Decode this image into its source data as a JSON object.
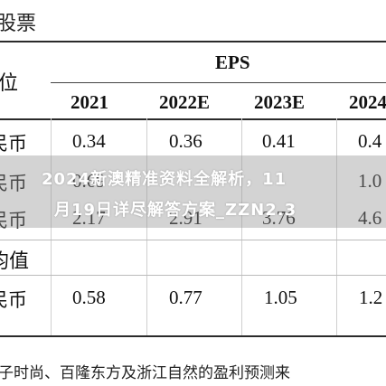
{
  "table": {
    "top_left_fragment": "股票",
    "unit_fragment": "位",
    "eps_header": "EPS",
    "years": [
      "2021",
      "2022E",
      "2023E",
      "2024"
    ],
    "rows": [
      {
        "label": "民币",
        "values": [
          "0.34",
          "0.36",
          "0.41",
          "0.4"
        ]
      },
      {
        "label": "民币",
        "values": [
          "0.69",
          "",
          "",
          "1.0"
        ]
      },
      {
        "label": "民币",
        "values": [
          "2.17",
          "2.91",
          "3.76",
          "4.6"
        ]
      }
    ],
    "section_label": "均值",
    "avg_row": {
      "label": "民币",
      "values": [
        "0.58",
        "0.77",
        "1.05",
        "1.2"
      ]
    }
  },
  "footnote": "子时尚、百隆东方及浙江自然的盈利预测来",
  "watermark": {
    "line1": "2024新澳精准资料全解析，11",
    "line2": "月19日详尽解答方案_ZZN2.3"
  }
}
